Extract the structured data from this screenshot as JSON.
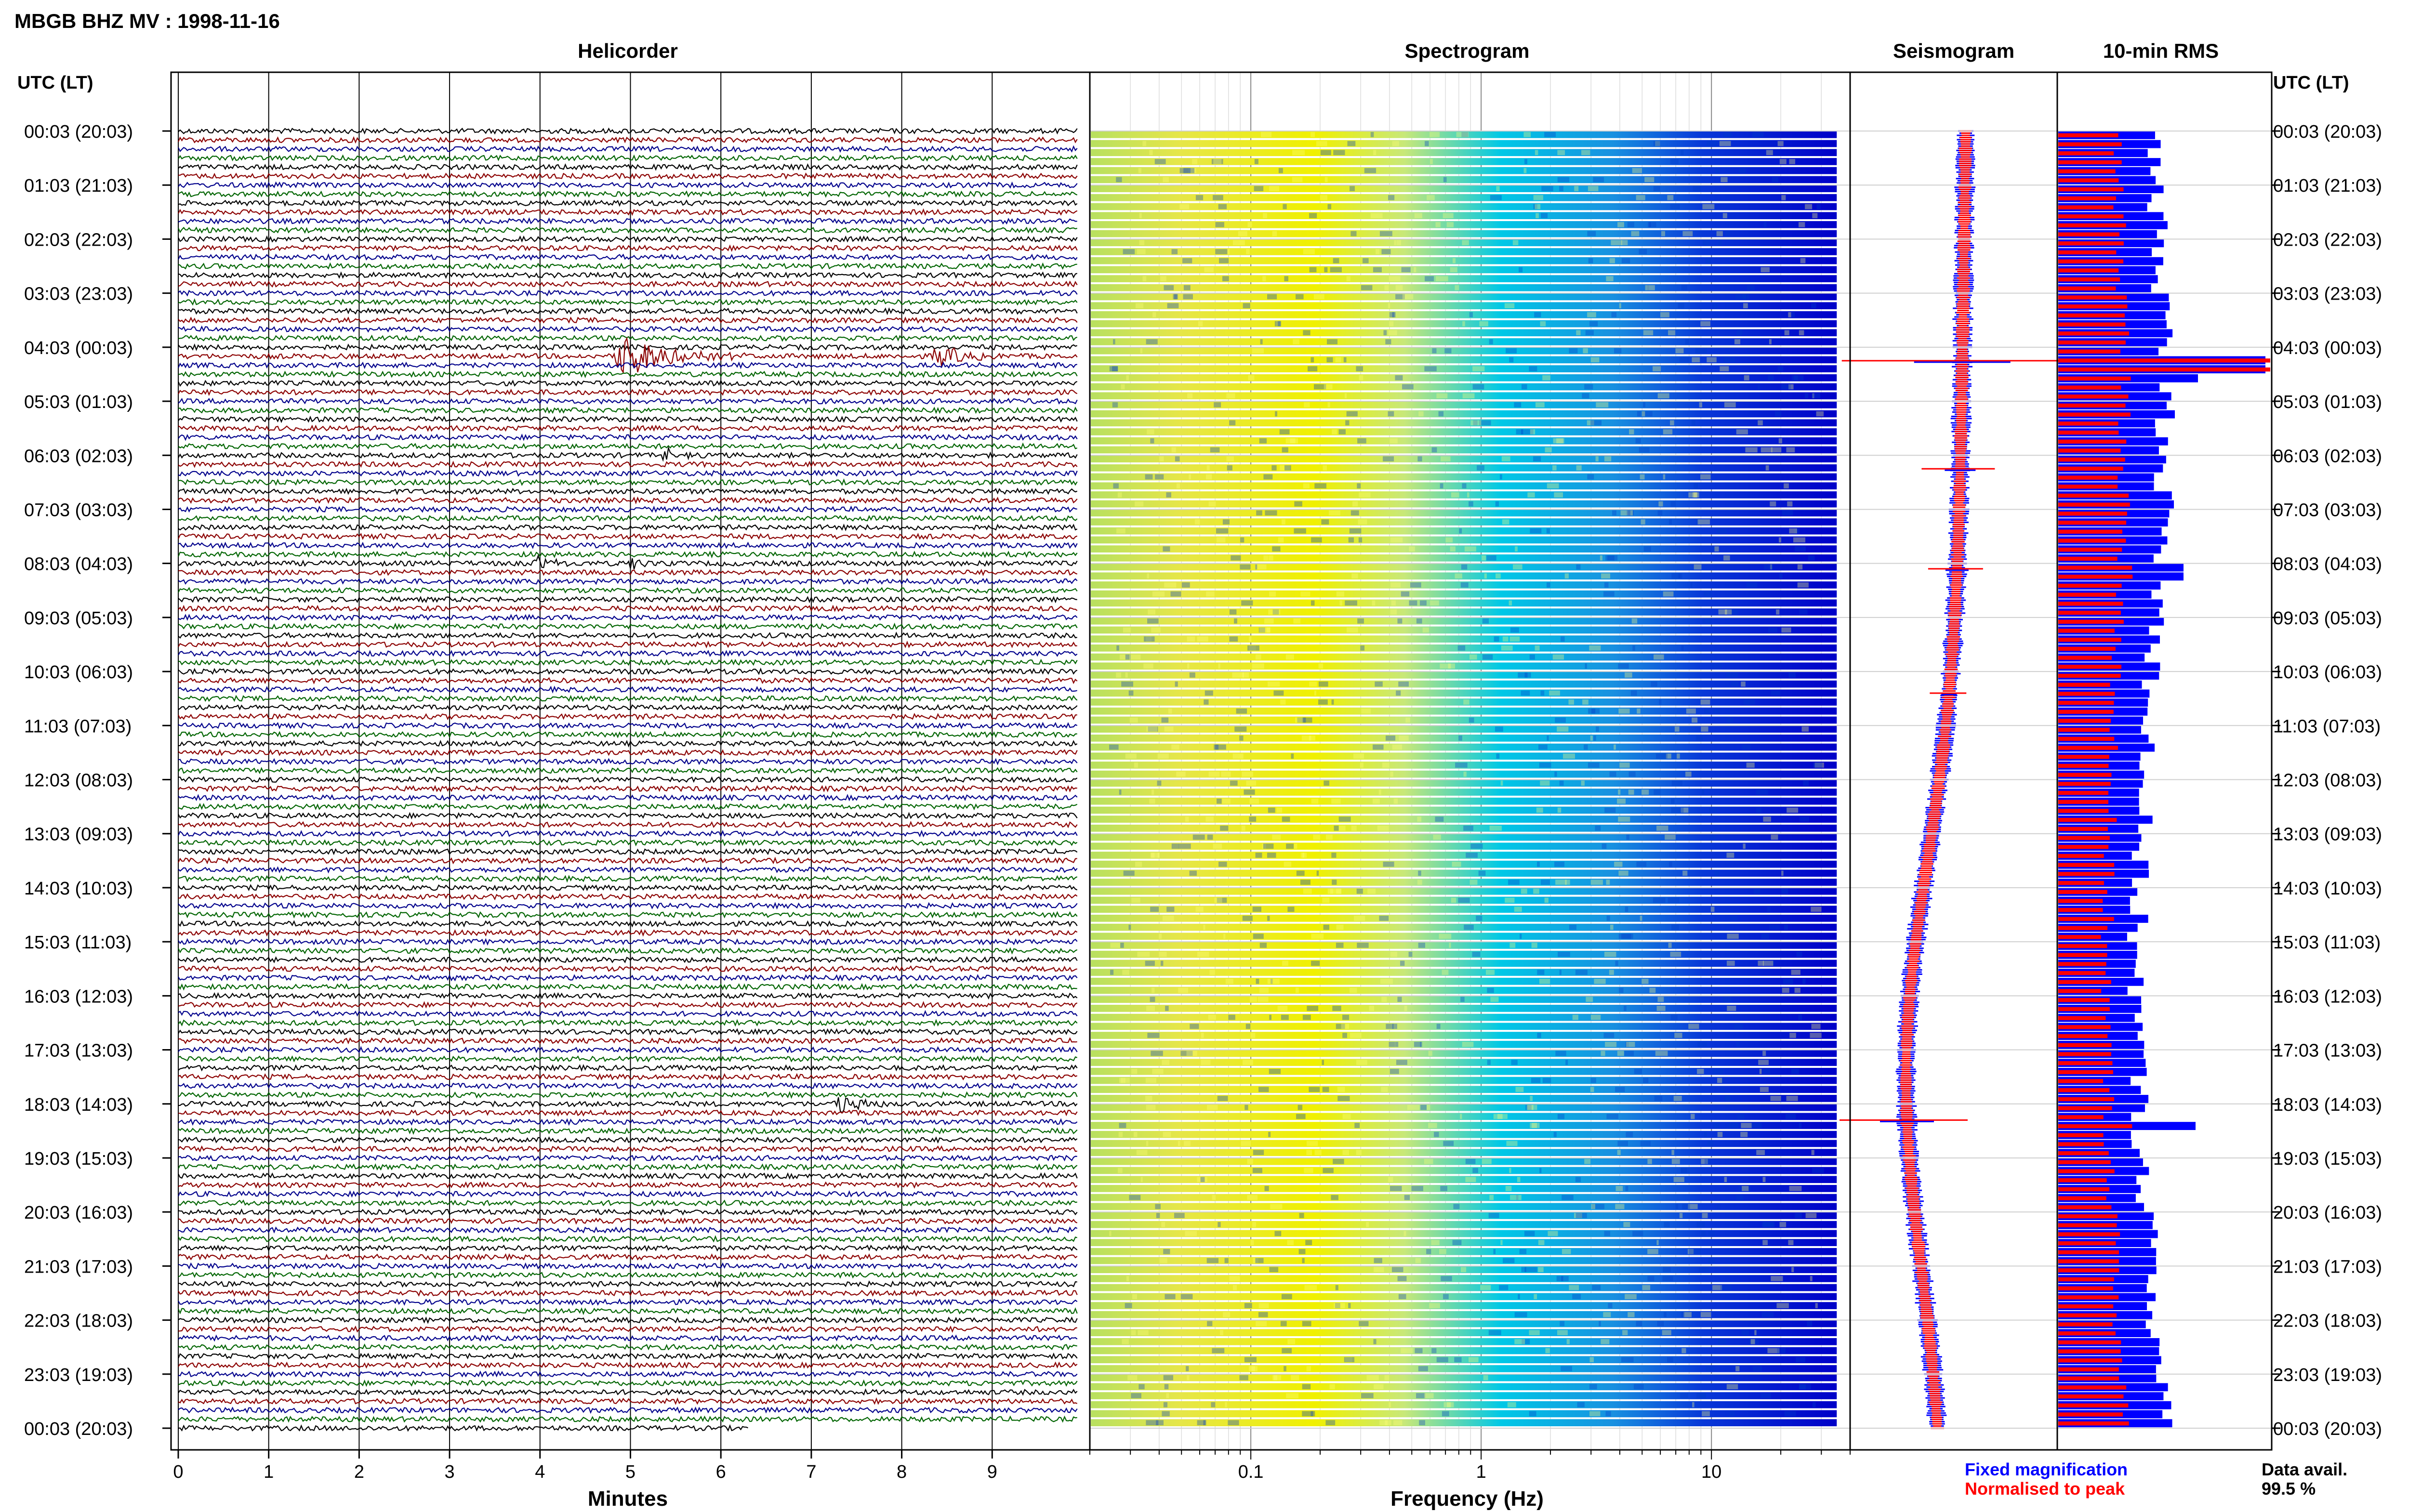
{
  "title": "MBGB BHZ MV : 1998-11-16",
  "colors": {
    "helicorder_traces": [
      "#000000",
      "#8b0000",
      "#00008b",
      "#006400"
    ],
    "spectrogram_low": "#0000c8",
    "spectrogram_mid": "#00c8e6",
    "spectrogram_high": "#f0f000",
    "fixed": "#0000ff",
    "normalised": "#ff0000"
  },
  "time_axis": {
    "label": "UTC (LT)",
    "ticks": [
      "00:03 (20:03)",
      "01:03 (21:03)",
      "02:03 (22:03)",
      "03:03 (23:03)",
      "04:03 (00:03)",
      "05:03 (01:03)",
      "06:03 (02:03)",
      "07:03 (03:03)",
      "08:03 (04:03)",
      "09:03 (05:03)",
      "10:03 (06:03)",
      "11:03 (07:03)",
      "12:03 (08:03)",
      "13:03 (09:03)",
      "14:03 (10:03)",
      "15:03 (11:03)",
      "16:03 (12:03)",
      "17:03 (13:03)",
      "18:03 (14:03)",
      "19:03 (15:03)",
      "20:03 (16:03)",
      "21:03 (17:03)",
      "22:03 (18:03)",
      "23:03 (19:03)",
      "00:03 (20:03)"
    ]
  },
  "chart_data": [
    {
      "type": "line",
      "title": "Helicorder",
      "xlabel": "Minutes",
      "xlim": [
        0,
        10
      ],
      "x_ticks": [
        "0",
        "1",
        "2",
        "3",
        "4",
        "5",
        "6",
        "7",
        "8",
        "9"
      ],
      "lines_per_hour": 6,
      "events": [
        {
          "time": "04:03",
          "line": 1,
          "minute": 4.9,
          "amp": 3.0,
          "dur": 1.4,
          "color": "#8b0000"
        },
        {
          "time": "04:03",
          "line": 1,
          "minute": 8.4,
          "amp": 1.3,
          "dur": 0.9,
          "color": "#8b0000"
        },
        {
          "time": "06:03",
          "line": 0,
          "minute": 5.4,
          "amp": 0.9,
          "dur": 0.4,
          "color": "#8b0000"
        },
        {
          "time": "08:03",
          "line": 0,
          "minute": 4.0,
          "amp": 1.0,
          "dur": 0.5,
          "color": "#000000"
        },
        {
          "time": "08:03",
          "line": 0,
          "minute": 5.0,
          "amp": 0.9,
          "dur": 0.4,
          "color": "#000000"
        },
        {
          "time": "18:03",
          "line": 0,
          "minute": 7.3,
          "amp": 1.3,
          "dur": 0.9,
          "color": "#8b0000"
        }
      ]
    },
    {
      "type": "heatmap",
      "title": "Spectrogram",
      "xlabel": "Frequency (Hz)",
      "x_scale": "log",
      "xlim": [
        0.02,
        40
      ],
      "x_ticks": [
        {
          "value": 0.1,
          "label": "0.1"
        },
        {
          "value": 1,
          "label": "1"
        },
        {
          "value": 10,
          "label": "10"
        }
      ]
    },
    {
      "type": "line",
      "title": "Seismogram",
      "series": [
        {
          "name": "Fixed magnification",
          "color": "#0000ff"
        },
        {
          "name": "Normalised to peak",
          "color": "#ff0000"
        }
      ]
    },
    {
      "type": "bar",
      "title": "10-min RMS",
      "bars_per_hour": 6
    }
  ],
  "data_availability": {
    "label": "Data avail.",
    "value": "99.5 %"
  }
}
